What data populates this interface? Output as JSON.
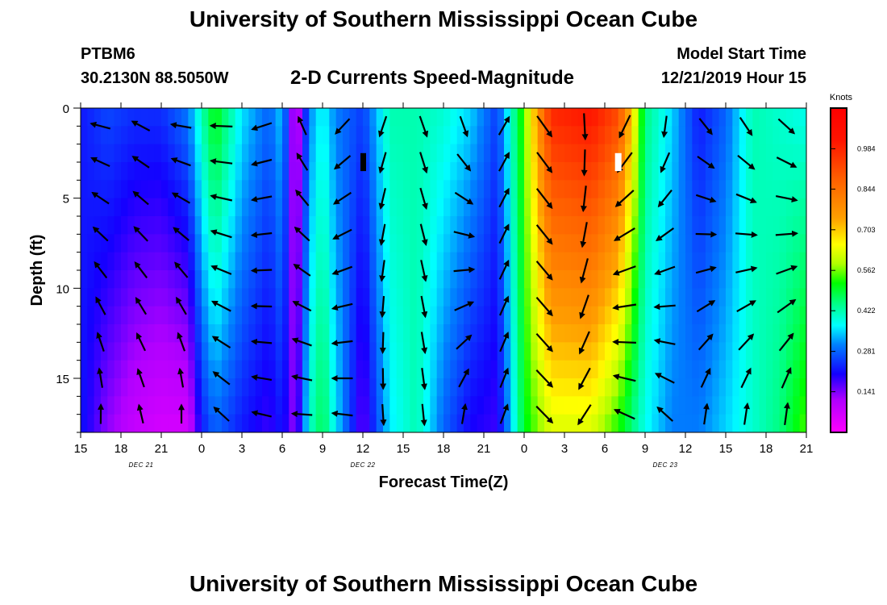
{
  "header": {
    "title": "University of Southern Mississippi Ocean Cube",
    "station": "PTBM6",
    "coords": "30.2130N 88.5050W",
    "subtitle": "2-D Currents Speed-Magnitude",
    "model_start_label": "Model Start Time",
    "model_start_value": "12/21/2019 Hour 15"
  },
  "footer": {
    "title": "University of Southern Mississippi Ocean Cube"
  },
  "chart_data": {
    "type": "heatmap",
    "xlabel": "Forecast Time(Z)",
    "ylabel": "Depth (ft)",
    "x_ticks": [
      "15",
      "18",
      "21",
      "0",
      "3",
      "6",
      "9",
      "12",
      "15",
      "18",
      "21",
      "0",
      "3",
      "6",
      "9",
      "12",
      "15",
      "18",
      "21"
    ],
    "date_labels": [
      {
        "text": "DEC 21",
        "tick_index": 1.5
      },
      {
        "text": "DEC 22",
        "tick_index": 7.0
      },
      {
        "text": "DEC 23",
        "tick_index": 14.5
      }
    ],
    "y_ticks": [
      0,
      5,
      10,
      15
    ],
    "ylim": [
      0,
      18
    ],
    "colorbar_label": "Knots",
    "colorbar_ticks": [
      0.984,
      0.844,
      0.703,
      0.562,
      0.422,
      0.281,
      0.141
    ],
    "colorbar_range": [
      0.0,
      1.125
    ],
    "time_range_hours": [
      0,
      54
    ],
    "depth_rows": [
      1,
      3,
      5,
      7,
      9,
      11,
      13,
      15,
      17
    ],
    "speed_profile_by_time": [
      {
        "h": 0,
        "surface": 0.22,
        "bottom": 0.22
      },
      {
        "h": 2,
        "surface": 0.26,
        "bottom": 0.13
      },
      {
        "h": 4,
        "surface": 0.24,
        "bottom": 0.08
      },
      {
        "h": 6,
        "surface": 0.24,
        "bottom": 0.06
      },
      {
        "h": 8,
        "surface": 0.3,
        "bottom": 0.06
      },
      {
        "h": 9,
        "surface": 0.42,
        "bottom": 0.22
      },
      {
        "h": 10,
        "surface": 0.52,
        "bottom": 0.28
      },
      {
        "h": 12,
        "surface": 0.36,
        "bottom": 0.22
      },
      {
        "h": 14,
        "surface": 0.28,
        "bottom": 0.18
      },
      {
        "h": 15,
        "surface": 0.35,
        "bottom": 0.22
      },
      {
        "h": 16,
        "surface": 0.05,
        "bottom": 0.12
      },
      {
        "h": 17,
        "surface": 0.3,
        "bottom": 0.4
      },
      {
        "h": 18,
        "surface": 0.38,
        "bottom": 0.48
      },
      {
        "h": 19,
        "surface": 0.3,
        "bottom": 0.36
      },
      {
        "h": 21,
        "surface": 0.25,
        "bottom": 0.15
      },
      {
        "h": 23,
        "surface": 0.42,
        "bottom": 0.36
      },
      {
        "h": 25,
        "surface": 0.42,
        "bottom": 0.42
      },
      {
        "h": 27,
        "surface": 0.4,
        "bottom": 0.28
      },
      {
        "h": 29,
        "surface": 0.35,
        "bottom": 0.2
      },
      {
        "h": 31,
        "surface": 0.25,
        "bottom": 0.18
      },
      {
        "h": 33,
        "surface": 0.55,
        "bottom": 0.5
      },
      {
        "h": 35,
        "surface": 0.98,
        "bottom": 0.62
      },
      {
        "h": 38,
        "surface": 1.02,
        "bottom": 0.62
      },
      {
        "h": 40,
        "surface": 0.92,
        "bottom": 0.52
      },
      {
        "h": 41,
        "surface": 0.7,
        "bottom": 0.45
      },
      {
        "h": 42,
        "surface": 0.45,
        "bottom": 0.38
      },
      {
        "h": 44,
        "surface": 0.35,
        "bottom": 0.3
      },
      {
        "h": 46,
        "surface": 0.22,
        "bottom": 0.3
      },
      {
        "h": 48,
        "surface": 0.28,
        "bottom": 0.35
      },
      {
        "h": 50,
        "surface": 0.42,
        "bottom": 0.4
      },
      {
        "h": 52,
        "surface": 0.4,
        "bottom": 0.45
      },
      {
        "h": 54,
        "surface": 0.38,
        "bottom": 0.55
      }
    ],
    "vectors": [
      {
        "h": 1.5,
        "dir_deg": 280,
        "bottom_dir_deg": 5
      },
      {
        "h": 4.5,
        "dir_deg": 295,
        "bottom_dir_deg": 350
      },
      {
        "h": 7.5,
        "dir_deg": 275,
        "bottom_dir_deg": 5
      },
      {
        "h": 10.5,
        "dir_deg": 270,
        "bottom_dir_deg": 315
      },
      {
        "h": 13.5,
        "dir_deg": 250,
        "bottom_dir_deg": 285
      },
      {
        "h": 16.5,
        "dir_deg": 340,
        "bottom_dir_deg": 270
      },
      {
        "h": 19.5,
        "dir_deg": 220,
        "bottom_dir_deg": 280
      },
      {
        "h": 22.5,
        "dir_deg": 200,
        "bottom_dir_deg": 175
      },
      {
        "h": 25.5,
        "dir_deg": 160,
        "bottom_dir_deg": 175
      },
      {
        "h": 28.5,
        "dir_deg": 170,
        "bottom_dir_deg": 0
      },
      {
        "h": 31.5,
        "dir_deg": 30,
        "bottom_dir_deg": 20
      },
      {
        "h": 34.5,
        "dir_deg": 145,
        "bottom_dir_deg": 135
      },
      {
        "h": 37.5,
        "dir_deg": 175,
        "bottom_dir_deg": 215
      },
      {
        "h": 40.5,
        "dir_deg": 200,
        "bottom_dir_deg": 300
      },
      {
        "h": 43.5,
        "dir_deg": 180,
        "bottom_dir_deg": 320
      },
      {
        "h": 46.5,
        "dir_deg": 150,
        "bottom_dir_deg": 0
      },
      {
        "h": 49.5,
        "dir_deg": 155,
        "bottom_dir_deg": 0
      },
      {
        "h": 52.5,
        "dir_deg": 140,
        "bottom_dir_deg": 0
      }
    ]
  }
}
